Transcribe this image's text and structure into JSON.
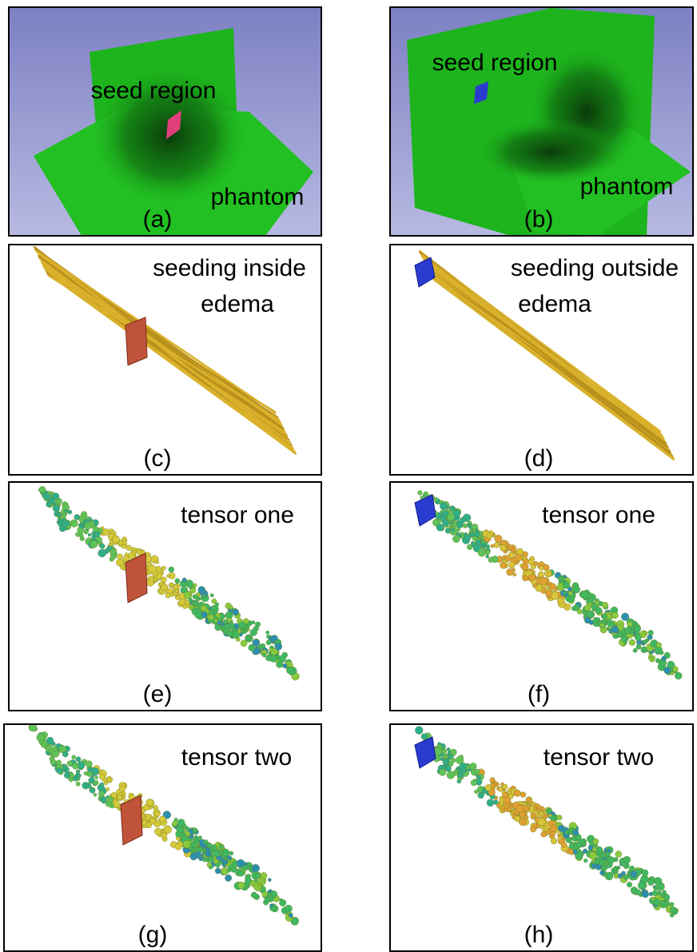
{
  "panels": [
    {
      "label": "(a)",
      "texts": [
        "seed region",
        "phantom"
      ]
    },
    {
      "label": "(b)",
      "texts": [
        "seed region",
        "phantom"
      ]
    },
    {
      "label": "(c)",
      "texts": [
        "seeding inside",
        "edema"
      ]
    },
    {
      "label": "(d)",
      "texts": [
        "seeding outside",
        "edema"
      ]
    },
    {
      "label": "(e)",
      "texts": [
        "tensor one"
      ]
    },
    {
      "label": "(f)",
      "texts": [
        "tensor one"
      ]
    },
    {
      "label": "(g)",
      "texts": [
        "tensor two"
      ]
    },
    {
      "label": "(h)",
      "texts": [
        "tensor two"
      ]
    }
  ]
}
